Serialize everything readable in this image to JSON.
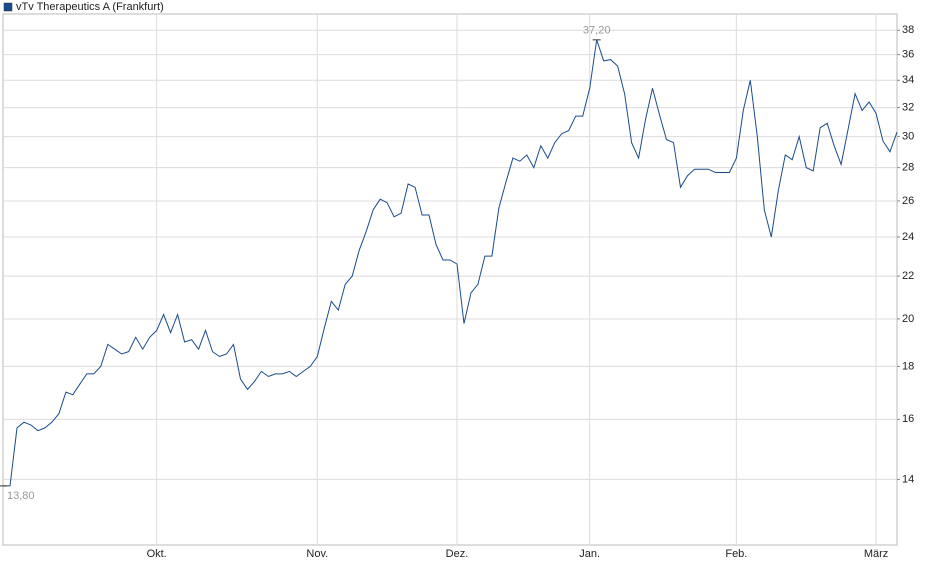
{
  "chart_data": {
    "type": "line",
    "series": [
      {
        "name": "vTv Therapeutics A (Frankfurt)",
        "color": "#1a4a8e",
        "values": [
          13.8,
          13.8,
          15.7,
          15.9,
          15.8,
          15.6,
          15.7,
          15.9,
          16.2,
          17.0,
          16.9,
          17.3,
          17.7,
          17.7,
          18.0,
          18.9,
          18.7,
          18.5,
          18.6,
          19.2,
          18.7,
          19.2,
          19.5,
          20.2,
          19.4,
          20.2,
          19.0,
          19.1,
          18.7,
          19.5,
          18.6,
          18.4,
          18.5,
          18.9,
          17.5,
          17.1,
          17.4,
          17.8,
          17.6,
          17.7,
          17.7,
          17.8,
          17.6,
          17.8,
          18.0,
          18.4,
          19.6,
          20.8,
          20.4,
          21.6,
          22.0,
          23.3,
          24.3,
          25.5,
          26.1,
          25.9,
          25.1,
          25.3,
          27.0,
          26.8,
          25.2,
          25.2,
          23.6,
          22.8,
          22.8,
          22.6,
          19.8,
          21.2,
          21.6,
          23.0,
          23.0,
          25.6,
          27.1,
          28.6,
          28.4,
          28.8,
          28.0,
          29.4,
          28.6,
          29.6,
          30.2,
          30.4,
          31.4,
          31.4,
          33.4,
          37.2,
          35.5,
          35.6,
          35.1,
          33.0,
          29.6,
          28.6,
          31.2,
          33.4,
          31.5,
          29.8,
          29.6,
          26.8,
          27.5,
          27.9,
          27.9,
          27.9,
          27.7,
          27.7,
          27.7,
          28.6,
          31.8,
          34.0,
          30.0,
          25.5,
          24.0,
          26.6,
          28.8,
          28.5,
          30.0,
          28.0,
          27.8,
          30.6,
          30.9,
          29.4,
          28.2,
          30.5,
          33.0,
          31.8,
          32.4,
          31.6,
          29.7,
          29.0,
          30.3
        ],
        "value_labels": [
          "13,80",
          null,
          null,
          null,
          null,
          null,
          null,
          null,
          null,
          null,
          null,
          null,
          null,
          null,
          null,
          null,
          null,
          null,
          null,
          null,
          null,
          null,
          null,
          null,
          null,
          null,
          null,
          null,
          null,
          null,
          null,
          null,
          null,
          null,
          null,
          null,
          null,
          null,
          null,
          null,
          null,
          null,
          null,
          null,
          null,
          null,
          null,
          null,
          null,
          null,
          null,
          null,
          null,
          null,
          null,
          null,
          null,
          null,
          null,
          null,
          null,
          null,
          null,
          null,
          null,
          null,
          null,
          null,
          null,
          null,
          null,
          null,
          null,
          null,
          null,
          null,
          null,
          null,
          null,
          null,
          null,
          null,
          null,
          null,
          null,
          "37,20",
          null,
          null,
          null,
          null,
          null,
          null,
          null,
          null,
          null,
          null,
          null,
          null,
          null,
          null,
          null,
          null,
          null,
          null,
          null,
          null,
          null,
          null,
          null,
          null,
          null,
          null,
          null,
          null,
          null,
          null,
          null,
          null,
          null,
          null,
          null,
          null,
          null,
          null,
          null,
          null,
          null,
          null,
          null
        ]
      }
    ],
    "categories": [
      null,
      null,
      null,
      null,
      null,
      null,
      null,
      null,
      null,
      null,
      null,
      null,
      null,
      null,
      null,
      null,
      null,
      null,
      null,
      null,
      null,
      null,
      "Okt.",
      null,
      null,
      null,
      null,
      null,
      null,
      null,
      null,
      null,
      null,
      null,
      null,
      null,
      null,
      null,
      null,
      null,
      null,
      null,
      null,
      null,
      null,
      "Nov.",
      null,
      null,
      null,
      null,
      null,
      null,
      null,
      null,
      null,
      null,
      null,
      null,
      null,
      null,
      null,
      null,
      null,
      null,
      null,
      "Dez.",
      null,
      null,
      null,
      null,
      null,
      null,
      null,
      null,
      null,
      null,
      null,
      null,
      null,
      null,
      null,
      null,
      null,
      null,
      "Jan.",
      null,
      null,
      null,
      null,
      null,
      null,
      null,
      null,
      null,
      null,
      null,
      null,
      null,
      null,
      null,
      null,
      null,
      null,
      null,
      null,
      "Feb.",
      null,
      null,
      null,
      null,
      null,
      null,
      null,
      null,
      null,
      null,
      null,
      null,
      null,
      null,
      null,
      null,
      null,
      null,
      null,
      "März",
      null,
      null,
      null
    ],
    "ylim": [
      12.1,
      39.4
    ],
    "yticks": [
      14,
      16,
      18,
      20,
      22,
      24,
      26,
      28,
      30,
      32,
      34,
      36,
      38
    ],
    "log_y": true,
    "grid": true
  }
}
